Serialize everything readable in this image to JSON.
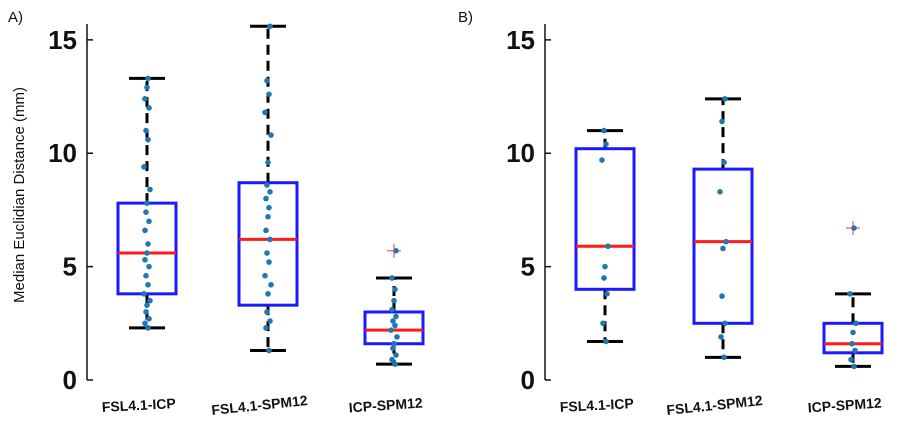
{
  "ylabel": "Median Euclidian Distance (mm)",
  "colors": {
    "box": "#1a1aff",
    "median": "#ff1a1a",
    "whisker": "#000000",
    "point": "#1f77b4",
    "outlier": "#ff3333"
  },
  "chart_data": [
    {
      "type": "box",
      "panel_label": "A)",
      "ylim": [
        0,
        15.7
      ],
      "yticks": [
        "0",
        "5",
        "10",
        "15"
      ],
      "categories": [
        "FSL4.1-ICP",
        "FSL4.1-SPM12",
        "ICP-SPM12"
      ],
      "boxes": [
        {
          "q1": 3.8,
          "median": 5.6,
          "q3": 7.8,
          "whisker_low": 2.3,
          "whisker_high": 13.3,
          "outliers": [],
          "points": [
            2.3,
            2.5,
            2.7,
            3.0,
            3.3,
            3.5,
            3.8,
            4.2,
            4.6,
            5.0,
            5.3,
            5.6,
            6.0,
            6.6,
            7.0,
            7.4,
            7.8,
            8.4,
            9.4,
            10.6,
            11.0,
            12.0,
            12.4,
            12.9,
            13.3
          ]
        },
        {
          "q1": 3.3,
          "median": 6.2,
          "q3": 8.7,
          "whisker_low": 1.3,
          "whisker_high": 15.6,
          "outliers": [],
          "points": [
            1.3,
            2.3,
            2.6,
            3.0,
            3.8,
            4.2,
            4.6,
            5.2,
            5.6,
            6.2,
            6.6,
            7.2,
            7.6,
            8.0,
            8.3,
            8.6,
            9.6,
            10.8,
            11.8,
            12.6,
            13.2,
            15.6
          ]
        },
        {
          "q1": 1.6,
          "median": 2.2,
          "q3": 3.0,
          "whisker_low": 0.7,
          "whisker_high": 4.5,
          "outliers": [
            5.7
          ],
          "points": [
            0.7,
            0.9,
            1.1,
            1.4,
            1.6,
            1.9,
            2.2,
            2.4,
            2.6,
            2.8,
            3.1,
            3.5,
            4.0,
            4.5,
            5.7
          ]
        }
      ]
    },
    {
      "type": "box",
      "panel_label": "B)",
      "ylim": [
        0,
        15.7
      ],
      "yticks": [
        "0",
        "5",
        "10",
        "15"
      ],
      "categories": [
        "FSL4.1-ICP",
        "FSL4.1-SPM12",
        "ICP-SPM12"
      ],
      "boxes": [
        {
          "q1": 4.0,
          "median": 5.9,
          "q3": 10.2,
          "whisker_low": 1.7,
          "whisker_high": 11.0,
          "outliers": [],
          "points": [
            1.7,
            2.5,
            3.8,
            4.5,
            5.0,
            5.9,
            9.7,
            10.4,
            11.0
          ]
        },
        {
          "q1": 2.5,
          "median": 6.1,
          "q3": 9.3,
          "whisker_low": 1.0,
          "whisker_high": 12.4,
          "outliers": [],
          "points": [
            1.0,
            1.9,
            2.5,
            3.7,
            5.8,
            6.1,
            8.3,
            9.6,
            11.4,
            12.4
          ]
        },
        {
          "q1": 1.2,
          "median": 1.6,
          "q3": 2.5,
          "whisker_low": 0.6,
          "whisker_high": 3.8,
          "outliers": [
            6.7
          ],
          "points": [
            0.6,
            0.9,
            1.3,
            1.6,
            2.1,
            2.5,
            3.8,
            6.7
          ]
        }
      ]
    }
  ]
}
